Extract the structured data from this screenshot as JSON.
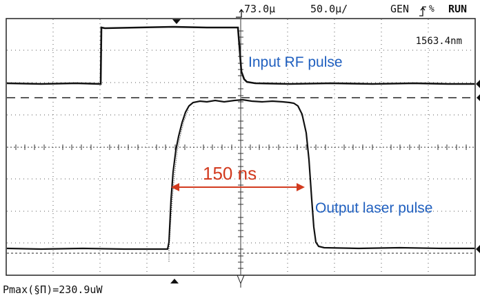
{
  "header": {
    "trigger_level": "73.0µ",
    "time_per_div": "50.0µ/",
    "mode": "GEN",
    "trigger_icon": "trigger-edge-icon",
    "status": "RUN"
  },
  "readouts": {
    "wavelength": "1563.4nm",
    "pmax": "Pmax(§Π)=230.9uW"
  },
  "annotations": {
    "input_label": "Input RF pulse",
    "output_label": "Output laser pulse",
    "pulse_width": "150 ns"
  },
  "colors": {
    "trace": "#111111",
    "annotation_text": "#1f5fbf",
    "width_marker": "#d23a1e",
    "grid": "#444444"
  }
}
